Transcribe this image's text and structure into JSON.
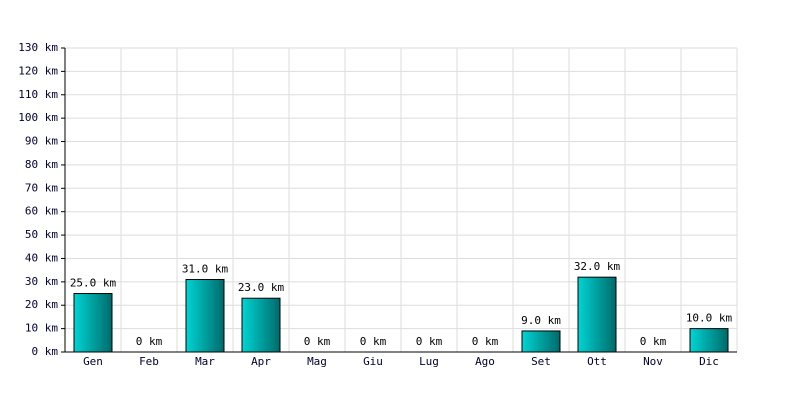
{
  "chart_data": {
    "type": "bar",
    "categories": [
      "Gen",
      "Feb",
      "Mar",
      "Apr",
      "Mag",
      "Giu",
      "Lug",
      "Ago",
      "Set",
      "Ott",
      "Nov",
      "Dic"
    ],
    "values": [
      25,
      0,
      31,
      23,
      0,
      0,
      0,
      0,
      9,
      32,
      0,
      10
    ],
    "value_labels": [
      "25.0 km",
      "0 km",
      "31.0 km",
      "23.0 km",
      "0 km",
      "0 km",
      "0 km",
      "0 km",
      "9.0 km",
      "32.0 km",
      "0 km",
      "10.0 km"
    ],
    "color": "#00d4d4",
    "ylim": [
      0,
      130
    ],
    "yticks": [
      {
        "value": 0,
        "label": "0 km"
      },
      {
        "value": 10,
        "label": "10 km"
      },
      {
        "value": 20,
        "label": "20 km"
      },
      {
        "value": 30,
        "label": "30 km"
      },
      {
        "value": 40,
        "label": "40 km"
      },
      {
        "value": 50,
        "label": "50 km"
      },
      {
        "value": 60,
        "label": "60 km"
      },
      {
        "value": 70,
        "label": "70 km"
      },
      {
        "value": 80,
        "label": "80 km"
      },
      {
        "value": 90,
        "label": "90 km"
      },
      {
        "value": 100,
        "label": "100 km"
      },
      {
        "value": 110,
        "label": "110 km"
      },
      {
        "value": 120,
        "label": "120 km"
      },
      {
        "value": 130,
        "label": "130 km"
      }
    ],
    "grid": true
  }
}
